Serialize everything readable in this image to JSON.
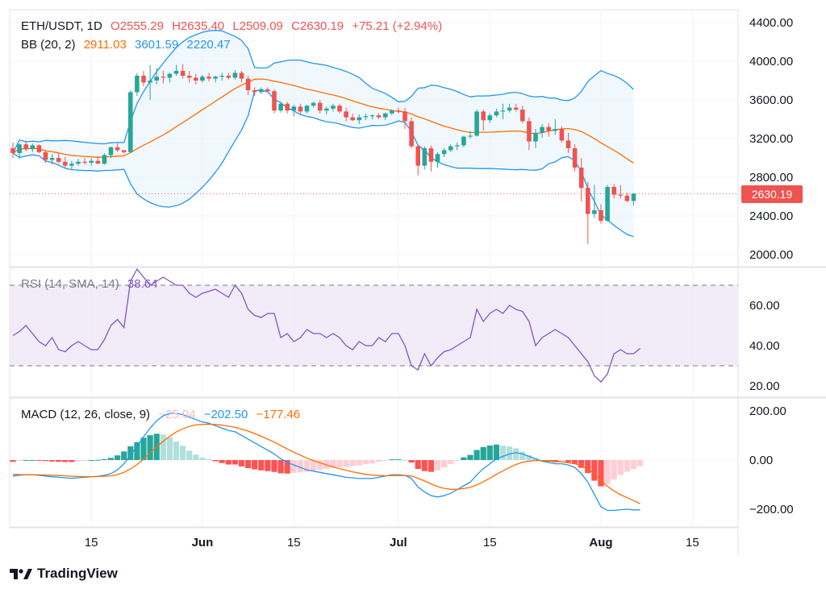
{
  "header": {
    "symbol_timeframe": "ETH/USDT, 1D",
    "open": "O2555.29",
    "high": "H2635.40",
    "low": "L2509.09",
    "close": "C2630.19",
    "change": "+75.21 (+2.94%)"
  },
  "bb_legend": {
    "label": "BB (20, 2)",
    "basis": "2911.03",
    "upper": "3601.59",
    "lower": "2220.47"
  },
  "rsi_legend": {
    "label": "RSI (14, SMA, 14)",
    "value": "38.64"
  },
  "macd_legend": {
    "label": "MACD (12, 26, close, 9)",
    "hist": "−25.04",
    "macd": "−202.50",
    "signal": "−177.46"
  },
  "last_price_tag": "2630.19",
  "brand": "TradingView",
  "colors": {
    "up": "#26a69a",
    "down": "#ef5350",
    "bb_line": "#2196f3",
    "bb_fill": "#e3f2fd",
    "basis": "#ff6d00",
    "rsi": "#7e57c2",
    "rsi_band": "#ede7f6",
    "macd": "#2196f3",
    "signal": "#ff6d00"
  },
  "chart_data": [
    {
      "type": "candlestick",
      "title": "ETH/USDT, 1D",
      "x_ticks": [
        "15",
        "Jun",
        "15",
        "Jul",
        "15",
        "Aug",
        "15"
      ],
      "y_ticks": [
        "4400.00",
        "4000.00",
        "3600.00",
        "3200.00",
        "2800.00",
        "2400.00",
        "2000.00"
      ],
      "ylim": [
        1900,
        4500
      ],
      "last_price": 2630.19,
      "ohlc": [
        [
          3100,
          3160,
          3000,
          3050
        ],
        [
          3050,
          3150,
          2990,
          3140
        ],
        [
          3140,
          3180,
          3070,
          3090
        ],
        [
          3090,
          3150,
          3060,
          3130
        ],
        [
          3130,
          3140,
          3050,
          3060
        ],
        [
          3060,
          3080,
          2950,
          2980
        ],
        [
          2980,
          3040,
          2930,
          3000
        ],
        [
          3000,
          3050,
          2940,
          2960
        ],
        [
          2960,
          3010,
          2900,
          2920
        ],
        [
          2920,
          2970,
          2880,
          2940
        ],
        [
          2940,
          2990,
          2920,
          2960
        ],
        [
          2960,
          3000,
          2930,
          2950
        ],
        [
          2950,
          3000,
          2920,
          2970
        ],
        [
          2970,
          3020,
          2940,
          2940
        ],
        [
          2940,
          3050,
          2930,
          3030
        ],
        [
          3030,
          3120,
          3000,
          3110
        ],
        [
          3110,
          3150,
          3060,
          3080
        ],
        [
          3080,
          3080,
          3040,
          3060
        ],
        [
          3060,
          3700,
          3050,
          3680
        ],
        [
          3680,
          3880,
          3640,
          3850
        ],
        [
          3850,
          3900,
          3740,
          3780
        ],
        [
          3780,
          3960,
          3600,
          3800
        ],
        [
          3800,
          3930,
          3760,
          3840
        ],
        [
          3840,
          3900,
          3770,
          3830
        ],
        [
          3830,
          3880,
          3780,
          3870
        ],
        [
          3870,
          3960,
          3850,
          3900
        ],
        [
          3900,
          3970,
          3820,
          3850
        ],
        [
          3850,
          3900,
          3780,
          3830
        ],
        [
          3830,
          3870,
          3760,
          3800
        ],
        [
          3800,
          3860,
          3780,
          3840
        ],
        [
          3840,
          3880,
          3790,
          3820
        ],
        [
          3820,
          3850,
          3780,
          3840
        ],
        [
          3840,
          3880,
          3800,
          3850
        ],
        [
          3850,
          3880,
          3810,
          3830
        ],
        [
          3830,
          3910,
          3810,
          3880
        ],
        [
          3880,
          3900,
          3780,
          3820
        ],
        [
          3820,
          3850,
          3650,
          3700
        ],
        [
          3700,
          3730,
          3640,
          3680
        ],
        [
          3680,
          3730,
          3660,
          3710
        ],
        [
          3710,
          3730,
          3680,
          3690
        ],
        [
          3690,
          3710,
          3460,
          3490
        ],
        [
          3490,
          3580,
          3470,
          3560
        ],
        [
          3560,
          3580,
          3460,
          3490
        ],
        [
          3490,
          3550,
          3430,
          3530
        ],
        [
          3530,
          3560,
          3450,
          3480
        ],
        [
          3480,
          3550,
          3460,
          3540
        ],
        [
          3540,
          3580,
          3520,
          3570
        ],
        [
          3570,
          3600,
          3460,
          3490
        ],
        [
          3490,
          3530,
          3450,
          3510
        ],
        [
          3510,
          3560,
          3480,
          3540
        ],
        [
          3540,
          3560,
          3460,
          3480
        ],
        [
          3480,
          3520,
          3380,
          3420
        ],
        [
          3420,
          3460,
          3380,
          3390
        ],
        [
          3390,
          3450,
          3350,
          3420
        ],
        [
          3420,
          3460,
          3390,
          3430
        ],
        [
          3430,
          3450,
          3400,
          3440
        ],
        [
          3440,
          3460,
          3400,
          3420
        ],
        [
          3420,
          3470,
          3390,
          3460
        ],
        [
          3460,
          3500,
          3440,
          3490
        ],
        [
          3490,
          3520,
          3460,
          3480
        ],
        [
          3480,
          3520,
          3300,
          3380
        ],
        [
          3380,
          3420,
          3100,
          3120
        ],
        [
          3120,
          3140,
          2820,
          2920
        ],
        [
          2920,
          3120,
          2880,
          3100
        ],
        [
          3100,
          3130,
          2860,
          2960
        ],
        [
          2960,
          3060,
          2900,
          3040
        ],
        [
          3040,
          3100,
          3010,
          3080
        ],
        [
          3080,
          3140,
          3060,
          3120
        ],
        [
          3120,
          3160,
          3080,
          3130
        ],
        [
          3130,
          3230,
          3110,
          3220
        ],
        [
          3220,
          3280,
          3200,
          3230
        ],
        [
          3230,
          3500,
          3220,
          3480
        ],
        [
          3480,
          3500,
          3280,
          3390
        ],
        [
          3390,
          3460,
          3360,
          3440
        ],
        [
          3440,
          3510,
          3420,
          3480
        ],
        [
          3480,
          3560,
          3400,
          3490
        ],
        [
          3490,
          3560,
          3470,
          3520
        ],
        [
          3520,
          3560,
          3480,
          3500
        ],
        [
          3500,
          3540,
          3360,
          3380
        ],
        [
          3380,
          3420,
          3080,
          3170
        ],
        [
          3170,
          3300,
          3100,
          3260
        ],
        [
          3260,
          3350,
          3210,
          3320
        ],
        [
          3320,
          3360,
          3220,
          3280
        ],
        [
          3280,
          3400,
          3240,
          3300
        ],
        [
          3300,
          3330,
          3160,
          3180
        ],
        [
          3180,
          3260,
          3050,
          3100
        ],
        [
          3100,
          3140,
          2860,
          2900
        ],
        [
          2900,
          3000,
          2550,
          2690
        ],
        [
          2690,
          2750,
          2110,
          2420
        ],
        [
          2420,
          2720,
          2380,
          2460
        ],
        [
          2460,
          2520,
          2320,
          2350
        ],
        [
          2350,
          2720,
          2340,
          2700
        ],
        [
          2700,
          2730,
          2580,
          2620
        ],
        [
          2620,
          2720,
          2580,
          2610
        ],
        [
          2610,
          2640,
          2540,
          2555
        ],
        [
          2555,
          2635,
          2509,
          2630
        ]
      ]
    },
    {
      "type": "line",
      "title": "RSI (14, SMA, 14)",
      "y_ticks": [
        "60.00",
        "40.00",
        "20.00"
      ],
      "bands": [
        70,
        30
      ],
      "values": [
        45,
        47,
        50,
        46,
        42,
        40,
        44,
        38,
        37,
        40,
        42,
        40,
        38,
        38,
        43,
        50,
        53,
        49,
        72,
        78,
        74,
        70,
        72,
        74,
        72,
        70,
        70,
        66,
        64,
        66,
        67,
        68,
        66,
        64,
        70,
        66,
        58,
        55,
        54,
        56,
        56,
        44,
        46,
        42,
        44,
        48,
        46,
        46,
        44,
        46,
        44,
        40,
        38,
        42,
        40,
        40,
        44,
        42,
        46,
        46,
        40,
        30,
        28,
        36,
        30,
        34,
        37,
        38,
        40,
        42,
        44,
        58,
        52,
        56,
        58,
        56,
        60,
        58,
        57,
        52,
        40,
        44,
        46,
        48,
        46,
        44,
        40,
        36,
        32,
        25,
        22,
        26,
        36,
        38,
        36,
        36,
        38.64
      ]
    },
    {
      "type": "bar+line",
      "title": "MACD (12, 26, close, 9)",
      "y_ticks": [
        "200.00",
        "0.00",
        "−200.00"
      ],
      "ylim": [
        -270,
        230
      ],
      "macd": [
        -65,
        -62,
        -60,
        -60,
        -62,
        -65,
        -68,
        -70,
        -72,
        -74,
        -72,
        -70,
        -68,
        -66,
        -62,
        -55,
        -40,
        -15,
        20,
        55,
        95,
        130,
        160,
        180,
        190,
        190,
        185,
        175,
        165,
        155,
        150,
        140,
        130,
        120,
        115,
        100,
        85,
        70,
        55,
        40,
        25,
        5,
        -10,
        -20,
        -30,
        -40,
        -45,
        -50,
        -55,
        -60,
        -65,
        -70,
        -72,
        -75,
        -75,
        -75,
        -70,
        -65,
        -60,
        -60,
        -62,
        -75,
        -110,
        -130,
        -145,
        -150,
        -145,
        -135,
        -120,
        -105,
        -90,
        -60,
        -35,
        -15,
        5,
        15,
        25,
        30,
        25,
        15,
        5,
        -5,
        -10,
        -15,
        -15,
        -20,
        -30,
        -55,
        -90,
        -140,
        -190,
        -205,
        -205,
        -202,
        -200,
        -202.5,
        -202.5
      ],
      "signal": [
        -58,
        -59,
        -60,
        -60,
        -60,
        -61,
        -62,
        -63,
        -64,
        -66,
        -67,
        -68,
        -68,
        -67,
        -66,
        -64,
        -59,
        -50,
        -36,
        -18,
        4,
        29,
        53,
        76,
        97,
        114,
        127,
        137,
        143,
        145,
        146,
        145,
        142,
        138,
        133,
        126,
        118,
        108,
        97,
        85,
        73,
        59,
        45,
        32,
        20,
        8,
        -2,
        -11,
        -20,
        -28,
        -35,
        -42,
        -48,
        -53,
        -58,
        -61,
        -63,
        -64,
        -63,
        -63,
        -63,
        -65,
        -74,
        -85,
        -97,
        -108,
        -115,
        -119,
        -119,
        -116,
        -111,
        -101,
        -88,
        -74,
        -58,
        -44,
        -30,
        -18,
        -9,
        -4,
        -2,
        -2,
        -4,
        -6,
        -8,
        -11,
        -15,
        -23,
        -37,
        -56,
        -83,
        -107,
        -126,
        -141,
        -153,
        -165,
        -177.46
      ],
      "histogram": [
        -7,
        -3,
        0,
        0,
        -2,
        -4,
        -6,
        -7,
        -8,
        -8,
        -5,
        -2,
        0,
        1,
        4,
        9,
        19,
        35,
        56,
        73,
        91,
        101,
        107,
        104,
        93,
        76,
        58,
        38,
        22,
        10,
        4,
        -5,
        -12,
        -18,
        -18,
        -26,
        -33,
        -38,
        -42,
        -45,
        -48,
        -54,
        -55,
        -52,
        -50,
        -48,
        -43,
        -39,
        -35,
        -32,
        -30,
        -28,
        -24,
        -22,
        -17,
        -14,
        -7,
        -1,
        3,
        3,
        1,
        -10,
        -36,
        -45,
        -48,
        -42,
        -30,
        -16,
        -1,
        11,
        21,
        41,
        53,
        59,
        63,
        59,
        55,
        48,
        34,
        19,
        7,
        -3,
        -6,
        -9,
        -7,
        -9,
        -15,
        -32,
        -53,
        -84,
        -107,
        -98,
        -79,
        -61,
        -47,
        -37,
        -25.04
      ]
    }
  ]
}
